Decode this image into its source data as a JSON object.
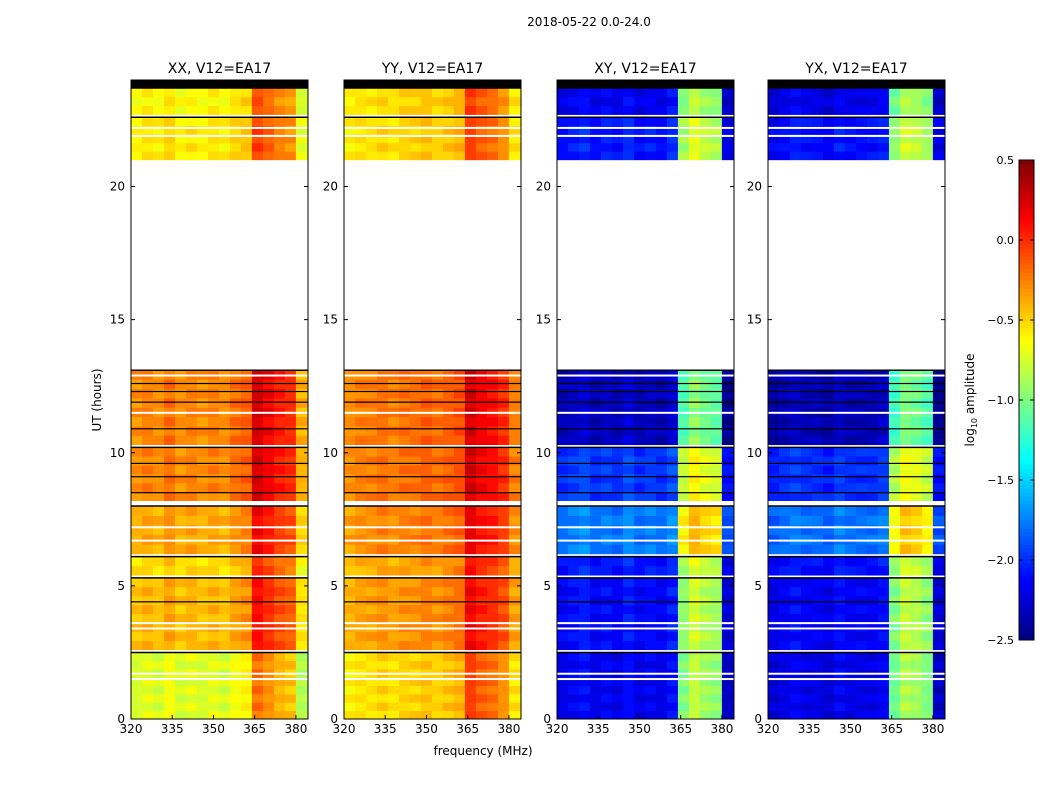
{
  "chart_data": {
    "type": "heatmap",
    "title": "2018-05-22 0.0-24.0",
    "xlabel": "frequency (MHz)",
    "ylabel": "UT (hours)",
    "xlim": [
      320,
      384.4
    ],
    "ylim": [
      0,
      24
    ],
    "xticks": [
      "320",
      "335",
      "350",
      "365",
      "380"
    ],
    "xtick_values": [
      320,
      335,
      350,
      365,
      380
    ],
    "yticks": [
      "0",
      "5",
      "10",
      "15",
      "20"
    ],
    "ytick_values": [
      0,
      5,
      10,
      15,
      20
    ],
    "colorbar": {
      "label": "log10 amplitude",
      "label_main": "log",
      "label_sub": "10",
      "label_rest": " amplitude",
      "range": [
        -2.5,
        0.5
      ],
      "ticks": [
        "0.5",
        "0.0",
        "−0.5",
        "−1.0",
        "−1.5",
        "−2.0",
        "−2.5"
      ],
      "tick_values": [
        0.5,
        0.0,
        -0.5,
        -1.0,
        -1.5,
        -2.0,
        -2.5
      ],
      "colormap": "jet"
    },
    "spw_edges_mhz": [
      320,
      324,
      328,
      332,
      336,
      340,
      344,
      348,
      352,
      356,
      360,
      364,
      368,
      372,
      376,
      380,
      384.4
    ],
    "time_segments": [
      [
        0,
        2.5
      ],
      [
        2.6,
        5.3
      ],
      [
        5.4,
        6.1
      ],
      [
        6.2,
        8.0
      ],
      [
        8.2,
        10.2
      ],
      [
        10.3,
        13.1
      ],
      [
        21.0,
        22.6
      ],
      [
        22.7,
        23.7
      ]
    ],
    "white_flag_times": [
      1.5,
      1.7,
      3.4,
      3.6,
      6.7,
      7.2,
      11.5,
      12.9,
      21.9,
      22.2
    ],
    "black_line_times": [
      4.4,
      8.5,
      9.1,
      9.6,
      10.9,
      11.9,
      12.3,
      12.6
    ],
    "panels": [
      {
        "title": "XX, V12=EA17",
        "spw_profile": [
          -0.6,
          -0.55,
          -0.6,
          -0.5,
          -0.6,
          -0.55,
          -0.6,
          -0.55,
          -0.6,
          -0.5,
          -0.45,
          -0.05,
          -0.15,
          -0.25,
          -0.3,
          -0.7
        ],
        "segment_offsets": [
          -0.15,
          0.15,
          0.05,
          0.2,
          0.3,
          0.3,
          0.0,
          -0.05
        ]
      },
      {
        "title": "YY, V12=EA17",
        "spw_profile": [
          -0.5,
          -0.45,
          -0.45,
          -0.4,
          -0.45,
          -0.4,
          -0.4,
          -0.35,
          -0.4,
          -0.35,
          -0.3,
          0.05,
          -0.05,
          -0.1,
          -0.2,
          -0.45
        ],
        "segment_offsets": [
          -0.1,
          0.1,
          0.05,
          0.15,
          0.2,
          0.2,
          -0.1,
          -0.1
        ]
      },
      {
        "title": "XY, V12=EA17",
        "spw_profile": [
          -2.1,
          -2.05,
          -2.0,
          -2.1,
          -2.05,
          -2.1,
          -2.0,
          -2.1,
          -2.05,
          -2.1,
          -2.0,
          -0.9,
          -0.7,
          -0.8,
          -0.85,
          -2.2
        ],
        "segment_offsets": [
          -0.1,
          -0.05,
          0.0,
          0.3,
          0.1,
          -0.25,
          0.0,
          -0.1
        ]
      },
      {
        "title": "YX, V12=EA17",
        "spw_profile": [
          -2.15,
          -2.1,
          -2.05,
          -2.1,
          -2.1,
          -2.15,
          -2.05,
          -2.1,
          -2.1,
          -2.1,
          -2.05,
          -0.95,
          -0.75,
          -0.8,
          -0.9,
          -2.2
        ],
        "segment_offsets": [
          -0.1,
          -0.05,
          0.0,
          0.3,
          0.1,
          -0.25,
          0.0,
          -0.1
        ]
      }
    ]
  }
}
